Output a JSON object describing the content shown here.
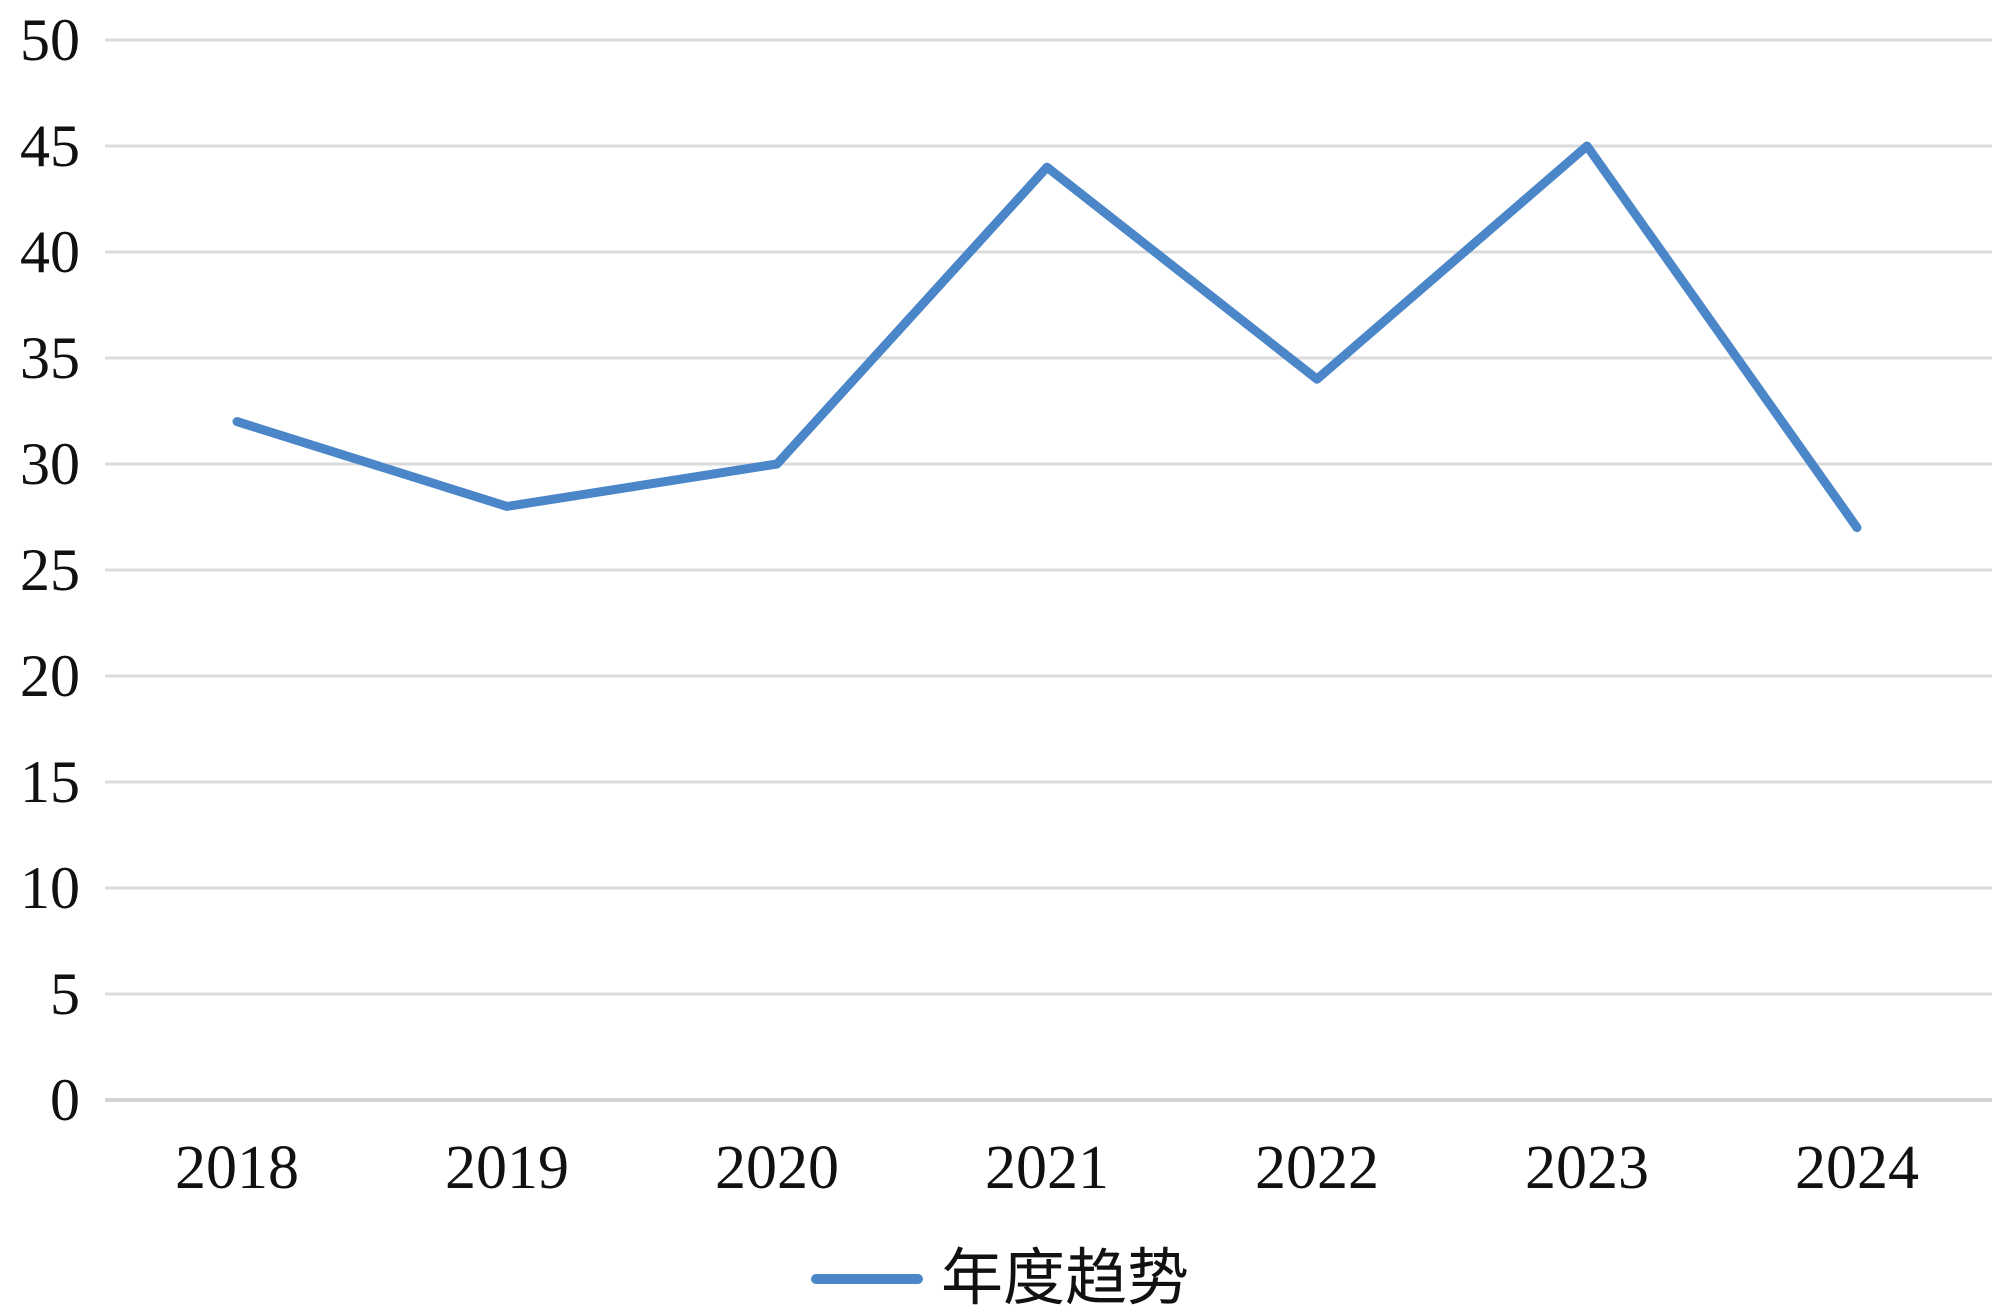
{
  "chart_data": {
    "type": "line",
    "categories": [
      "2018",
      "2019",
      "2020",
      "2021",
      "2022",
      "2023",
      "2024"
    ],
    "series": [
      {
        "name": "年度趋势",
        "values": [
          32,
          28,
          30,
          44,
          34,
          45,
          27
        ]
      }
    ],
    "title": "",
    "xlabel": "",
    "ylabel": "",
    "ylim": [
      0,
      50
    ],
    "yticks": [
      0,
      5,
      10,
      15,
      20,
      25,
      30,
      35,
      40,
      45,
      50
    ],
    "grid": true,
    "legend_position": "bottom-center",
    "colors": {
      "line": "#4A86C8",
      "gridline": "#DBDBDB",
      "axis": "#D3D3D3",
      "text": "#111111",
      "background": "#FFFFFF"
    }
  }
}
